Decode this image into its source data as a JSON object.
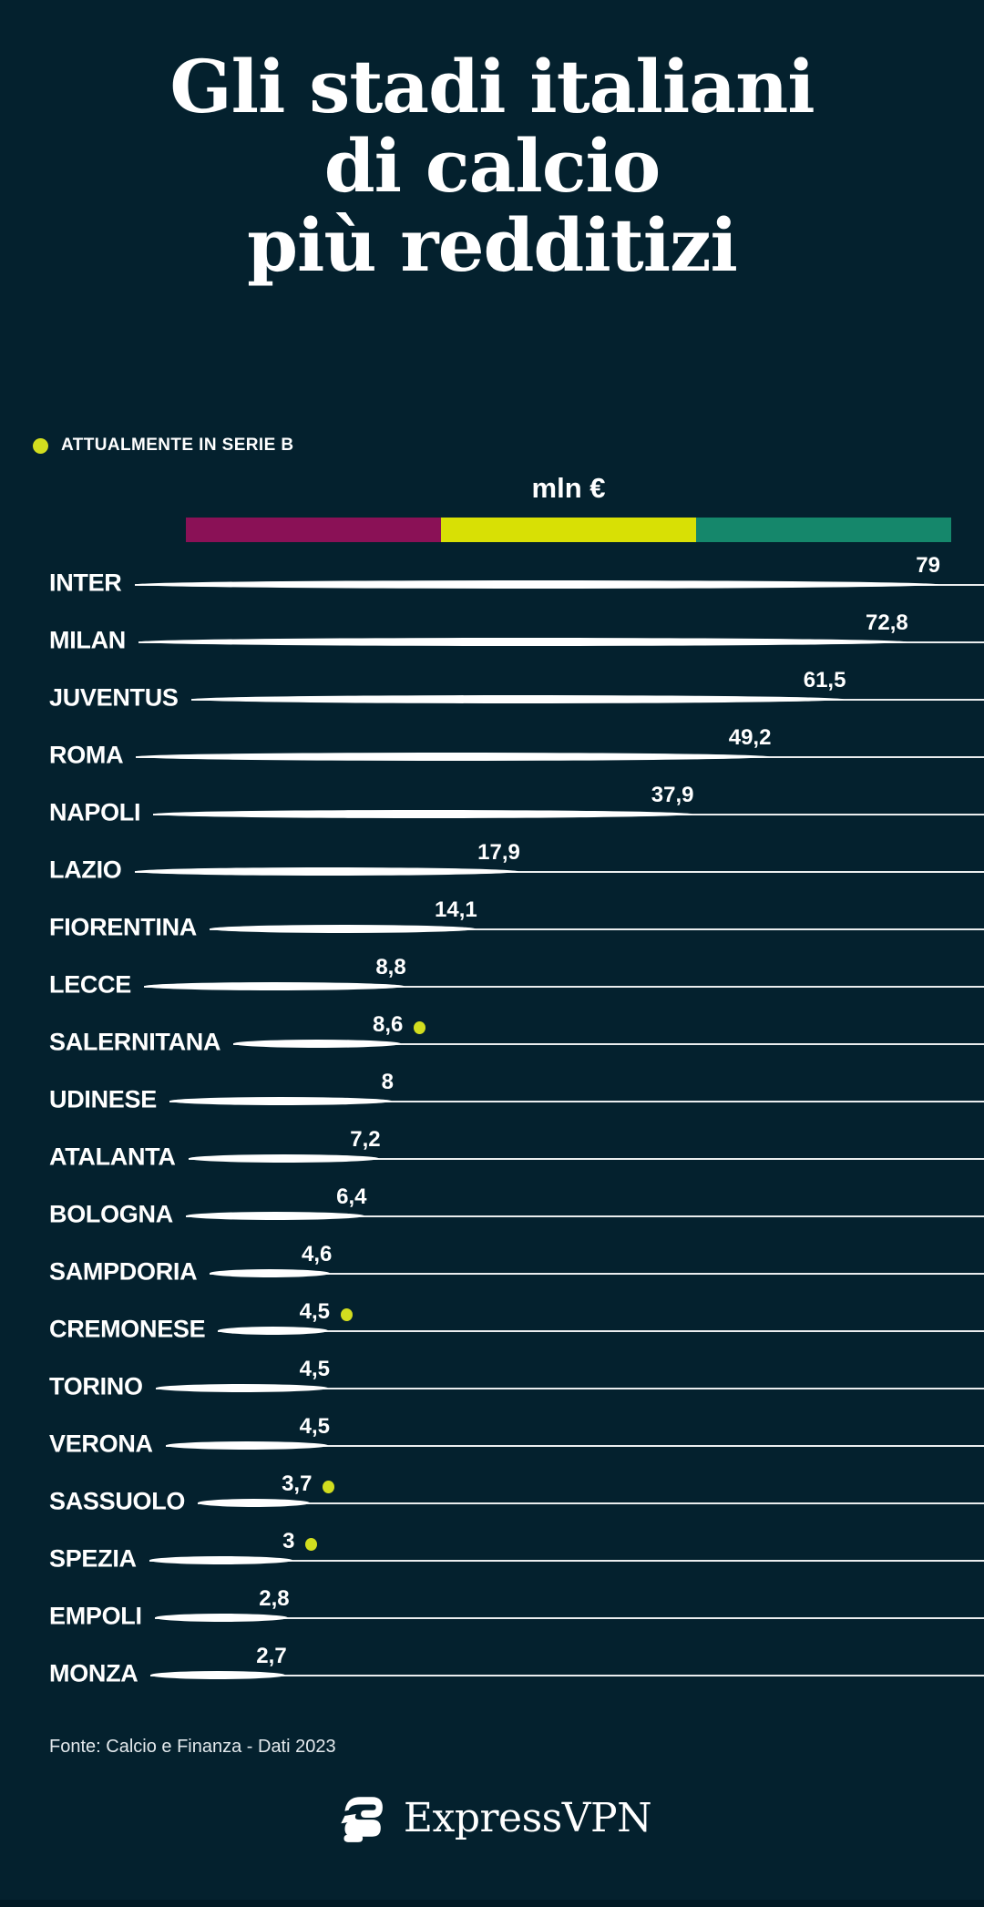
{
  "title": {
    "lines": [
      "Gli stadi italiani",
      "di calcio",
      "più redditizi"
    ]
  },
  "legend": {
    "label": "ATTUALMENTE IN SERIE B",
    "dot_color": "#d2dd1f"
  },
  "unit_label": "mln €",
  "scale_bar": {
    "segment_colors": [
      "#8a1156",
      "#d8e005",
      "#15876b"
    ]
  },
  "chart_data": {
    "type": "bar",
    "title": "Gli stadi italiani di calcio più redditizi",
    "unit": "mln €",
    "orientation": "horizontal",
    "xlim": [
      0,
      79
    ],
    "categories": [
      "INTER",
      "MILAN",
      "JUVENTUS",
      "ROMA",
      "NAPOLI",
      "LAZIO",
      "FIORENTINA",
      "LECCE",
      "SALERNITANA",
      "UDINESE",
      "ATALANTA",
      "BOLOGNA",
      "SAMPDORIA",
      "CREMONESE",
      "TORINO",
      "VERONA",
      "SASSUOLO",
      "SPEZIA",
      "EMPOLI",
      "MONZA"
    ],
    "values": [
      79,
      72.8,
      61.5,
      49.2,
      37.9,
      17.9,
      14.1,
      8.8,
      8.6,
      8,
      7.2,
      6.4,
      4.6,
      4.5,
      4.5,
      4.5,
      3.7,
      3,
      2.8,
      2.7
    ],
    "value_labels": [
      "79",
      "72,8",
      "61,5",
      "49,2",
      "37,9",
      "17,9",
      "14,1",
      "8,8",
      "8,6",
      "8",
      "7,2",
      "6,4",
      "4,6",
      "4,5",
      "4,5",
      "4,5",
      "3,7",
      "3",
      "2,8",
      "2,7"
    ],
    "currently_in_serie_b": [
      false,
      false,
      false,
      false,
      false,
      false,
      false,
      false,
      true,
      false,
      false,
      false,
      false,
      true,
      false,
      false,
      true,
      true,
      false,
      false
    ],
    "legend_entries": [
      "ATTUALMENTE IN SERIE B"
    ]
  },
  "footer": {
    "source": "Fonte: Calcio e Finanza - Dati 2023",
    "brand": "ExpressVPN"
  },
  "colors": {
    "background": "#04212e",
    "text": "#ffffff",
    "accent_dot": "#d2dd1f",
    "bar_magenta": "#8a1156",
    "bar_chartreuse": "#d8e005",
    "bar_teal": "#15876b"
  }
}
